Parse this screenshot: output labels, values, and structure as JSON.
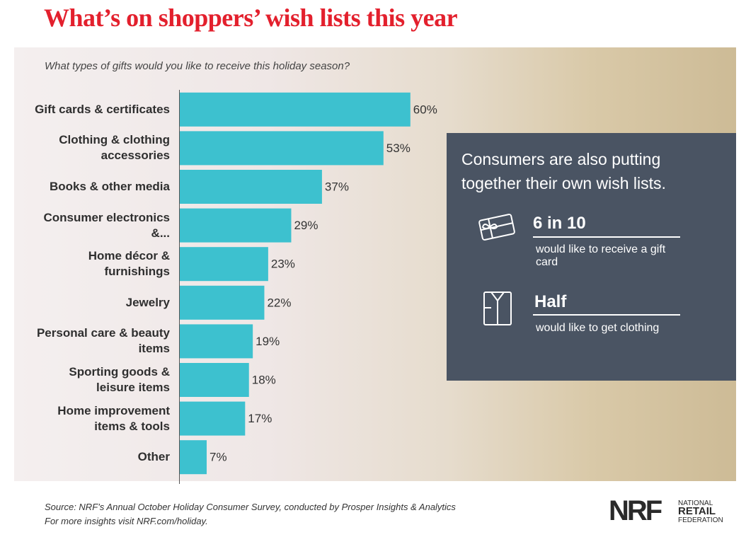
{
  "chart_data": {
    "type": "bar",
    "orientation": "horizontal",
    "title": "What’s on shoppers’ wish lists this year",
    "subtitle": "What types of gifts would you like to receive this holiday season?",
    "categories": [
      "Gift cards & certificates",
      "Clothing & clothing accessories",
      "Books & other media",
      "Consumer electronics &...",
      "Home décor & furnishings",
      "Jewelry",
      "Personal care & beauty items",
      "Sporting goods & leisure items",
      "Home improvement items & tools",
      "Other"
    ],
    "values": [
      60,
      53,
      37,
      29,
      23,
      22,
      19,
      18,
      17,
      7
    ],
    "value_labels": [
      "60%",
      "53%",
      "37%",
      "29%",
      "23%",
      "22%",
      "19%",
      "18%",
      "17%",
      "7%"
    ],
    "color": "#3dc1cf"
  },
  "callout": {
    "heading": "Consumers are also putting together their own wish lists.",
    "items": [
      {
        "stat": "6 in 10",
        "text": "would like to receive a gift card"
      },
      {
        "stat": "Half",
        "text": "would like to get clothing"
      }
    ]
  },
  "footer": {
    "source": "Source: NRF’s Annual October Holiday Consumer Survey, conducted by Prosper Insights & Analytics",
    "more": "For more insights visit NRF.com/holiday."
  },
  "logo": {
    "mark": "NRF",
    "lines": [
      "NATIONAL",
      "RETAIL",
      "FEDERATION"
    ]
  }
}
